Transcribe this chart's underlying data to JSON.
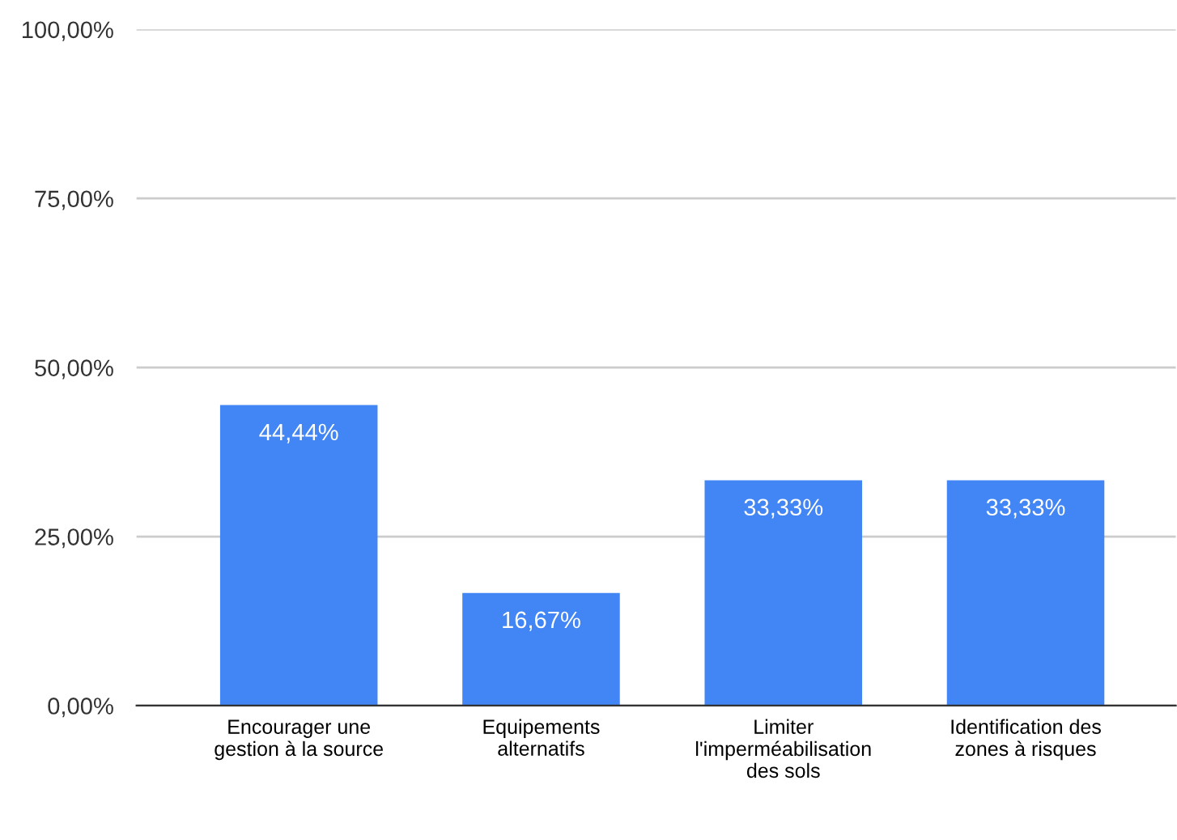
{
  "chart_data": {
    "type": "bar",
    "categories": [
      "Encourager une\ngestion à la source",
      "Equipements\nalternatifs",
      "Limiter\nl'imperméabilisation\ndes sols",
      "Identification des\nzones à risques"
    ],
    "values": [
      44.44,
      16.67,
      33.33,
      33.33
    ],
    "value_labels": [
      "44,44%",
      "16,67%",
      "33,33%",
      "33,33%"
    ],
    "color": "#4285f4",
    "ylim": [
      0,
      100
    ],
    "yticks": [
      {
        "value": 0,
        "label": "0,00%"
      },
      {
        "value": 25,
        "label": "25,00%"
      },
      {
        "value": 50,
        "label": "50,00%"
      },
      {
        "value": 75,
        "label": "75,00%"
      },
      {
        "value": 100,
        "label": "100,00%"
      }
    ],
    "grid": "y",
    "legend": false
  }
}
